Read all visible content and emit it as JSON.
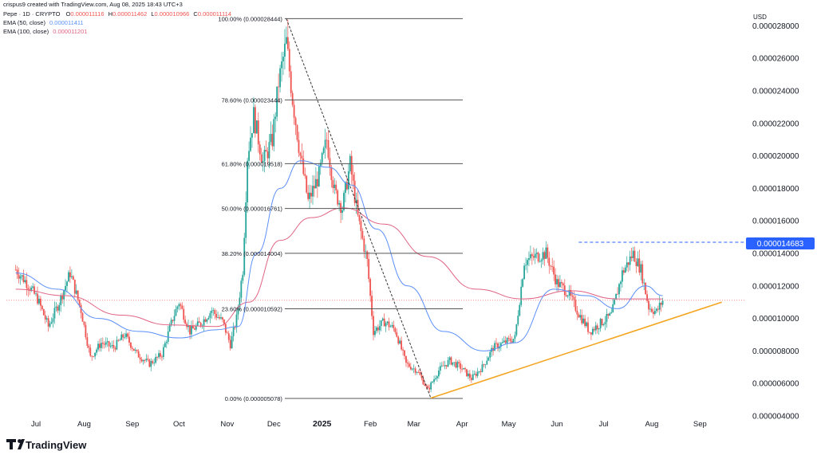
{
  "header": {
    "caption": "crispus9 created with TradingView.com, Aug 08, 2025 18:43 UTC+3",
    "symbol_line": "Pepe · 1D · CRYPTO",
    "ohlc": {
      "o_label": "O",
      "o_value": "0.000011116",
      "h_label": "H",
      "h_value": "0.000011462",
      "l_label": "L",
      "l_value": "0.000010966",
      "c_label": "C",
      "c_value": "0.000011114"
    },
    "ema50_label": "EMA (50, close)",
    "ema50_value": "0.000011411",
    "ema100_label": "EMA (100, close)",
    "ema100_value": "0.000011201"
  },
  "price_scale": {
    "currency": "USD",
    "highlight_label": "0.000014683"
  },
  "watermark": {
    "logo_text": "TradingView"
  },
  "colors": {
    "up": "#26a69a",
    "down": "#ef5350",
    "ema50": "#5b8ff9",
    "ema100": "#e06383",
    "trendline": "#f5a623",
    "fib": "#555555",
    "highlight": "#2962ff",
    "axis_text": "#131722"
  },
  "chart_data": {
    "type": "candlestick",
    "title": "Pepe · 1D · CRYPTO",
    "y_unit": "USD",
    "ylim": [
      3.9e-06,
      2.9e-05
    ],
    "y_ticks": [
      "0.000004000",
      "0.000006000",
      "0.000008000",
      "0.000010000",
      "0.000012000",
      "0.000014000",
      "0.000016000",
      "0.000018000",
      "0.000020000",
      "0.000022000",
      "0.000024000",
      "0.000026000",
      "0.000028000"
    ],
    "x_ticks": [
      "Jul",
      "Aug",
      "Sep",
      "Oct",
      "Nov",
      "Dec",
      "2025",
      "Feb",
      "Mar",
      "Apr",
      "May",
      "Jun",
      "Jul",
      "Aug",
      "Sep"
    ],
    "x_ticks_bold": [
      "2025"
    ],
    "grid": false,
    "close_path": [
      {
        "date": "2024-06-18",
        "close": 1.3e-05
      },
      {
        "date": "2024-06-25",
        "close": 1.22e-05
      },
      {
        "date": "2024-07-02",
        "close": 1.12e-05
      },
      {
        "date": "2024-07-09",
        "close": 9.5e-06
      },
      {
        "date": "2024-07-16",
        "close": 1.1e-05
      },
      {
        "date": "2024-07-23",
        "close": 1.28e-05
      },
      {
        "date": "2024-07-30",
        "close": 1.05e-05
      },
      {
        "date": "2024-08-05",
        "close": 7.6e-06
      },
      {
        "date": "2024-08-12",
        "close": 8.5e-06
      },
      {
        "date": "2024-08-20",
        "close": 8.2e-06
      },
      {
        "date": "2024-08-27",
        "close": 9e-06
      },
      {
        "date": "2024-09-04",
        "close": 7.8e-06
      },
      {
        "date": "2024-09-12",
        "close": 7.2e-06
      },
      {
        "date": "2024-09-20",
        "close": 7.8e-06
      },
      {
        "date": "2024-09-27",
        "close": 1e-05
      },
      {
        "date": "2024-10-01",
        "close": 1.1e-05
      },
      {
        "date": "2024-10-08",
        "close": 9.2e-06
      },
      {
        "date": "2024-10-15",
        "close": 9.7e-06
      },
      {
        "date": "2024-10-22",
        "close": 1.05e-05
      },
      {
        "date": "2024-10-29",
        "close": 9.8e-06
      },
      {
        "date": "2024-11-03",
        "close": 8.4e-06
      },
      {
        "date": "2024-11-07",
        "close": 1e-05
      },
      {
        "date": "2024-11-11",
        "close": 1.3e-05
      },
      {
        "date": "2024-11-14",
        "close": 2e-05
      },
      {
        "date": "2024-11-18",
        "close": 2.25e-05
      },
      {
        "date": "2024-11-24",
        "close": 1.96e-05
      },
      {
        "date": "2024-11-30",
        "close": 2.1e-05
      },
      {
        "date": "2024-12-04",
        "close": 2.45e-05
      },
      {
        "date": "2024-12-09",
        "close": 2.7e-05
      },
      {
        "date": "2024-12-13",
        "close": 2.35e-05
      },
      {
        "date": "2024-12-18",
        "close": 2e-05
      },
      {
        "date": "2024-12-23",
        "close": 1.72e-05
      },
      {
        "date": "2024-12-30",
        "close": 1.88e-05
      },
      {
        "date": "2025-01-04",
        "close": 2.1e-05
      },
      {
        "date": "2025-01-09",
        "close": 1.78e-05
      },
      {
        "date": "2025-01-14",
        "close": 1.68e-05
      },
      {
        "date": "2025-01-19",
        "close": 1.95e-05
      },
      {
        "date": "2025-01-24",
        "close": 1.62e-05
      },
      {
        "date": "2025-01-30",
        "close": 1.35e-05
      },
      {
        "date": "2025-02-03",
        "close": 9.2e-06
      },
      {
        "date": "2025-02-10",
        "close": 9.8e-06
      },
      {
        "date": "2025-02-17",
        "close": 9.3e-06
      },
      {
        "date": "2025-02-24",
        "close": 7.2e-06
      },
      {
        "date": "2025-03-03",
        "close": 6.8e-06
      },
      {
        "date": "2025-03-10",
        "close": 5.6e-06
      },
      {
        "date": "2025-03-17",
        "close": 6.8e-06
      },
      {
        "date": "2025-03-24",
        "close": 7.4e-06
      },
      {
        "date": "2025-03-31",
        "close": 7e-06
      },
      {
        "date": "2025-04-07",
        "close": 6.3e-06
      },
      {
        "date": "2025-04-14",
        "close": 7e-06
      },
      {
        "date": "2025-04-21",
        "close": 8.2e-06
      },
      {
        "date": "2025-04-28",
        "close": 8.5e-06
      },
      {
        "date": "2025-05-05",
        "close": 8.8e-06
      },
      {
        "date": "2025-05-11",
        "close": 1.35e-05
      },
      {
        "date": "2025-05-18",
        "close": 1.38e-05
      },
      {
        "date": "2025-05-25",
        "close": 1.4e-05
      },
      {
        "date": "2025-06-01",
        "close": 1.22e-05
      },
      {
        "date": "2025-06-08",
        "close": 1.16e-05
      },
      {
        "date": "2025-06-15",
        "close": 1.03e-05
      },
      {
        "date": "2025-06-22",
        "close": 9.2e-06
      },
      {
        "date": "2025-06-29",
        "close": 9.7e-06
      },
      {
        "date": "2025-07-06",
        "close": 1.02e-05
      },
      {
        "date": "2025-07-13",
        "close": 1.28e-05
      },
      {
        "date": "2025-07-20",
        "close": 1.4e-05
      },
      {
        "date": "2025-07-25",
        "close": 1.3e-05
      },
      {
        "date": "2025-07-30",
        "close": 1.07e-05
      },
      {
        "date": "2025-08-04",
        "close": 1.04e-05
      },
      {
        "date": "2025-08-08",
        "close": 1.11e-05
      }
    ],
    "ema50": [
      {
        "date": "2024-06-18",
        "value": 1.28e-05
      },
      {
        "date": "2024-07-15",
        "value": 1.18e-05
      },
      {
        "date": "2024-08-10",
        "value": 1e-05
      },
      {
        "date": "2024-09-05",
        "value": 9.2e-06
      },
      {
        "date": "2024-10-01",
        "value": 8.8e-06
      },
      {
        "date": "2024-10-25",
        "value": 9.3e-06
      },
      {
        "date": "2024-11-08",
        "value": 9.5e-06
      },
      {
        "date": "2024-11-20",
        "value": 1.4e-05
      },
      {
        "date": "2024-12-05",
        "value": 1.8e-05
      },
      {
        "date": "2024-12-18",
        "value": 1.97e-05
      },
      {
        "date": "2025-01-05",
        "value": 1.93e-05
      },
      {
        "date": "2025-01-20",
        "value": 1.82e-05
      },
      {
        "date": "2025-02-05",
        "value": 1.55e-05
      },
      {
        "date": "2025-02-25",
        "value": 1.2e-05
      },
      {
        "date": "2025-03-20",
        "value": 9.2e-06
      },
      {
        "date": "2025-04-15",
        "value": 8e-06
      },
      {
        "date": "2025-05-05",
        "value": 8.5e-06
      },
      {
        "date": "2025-05-30",
        "value": 1.18e-05
      },
      {
        "date": "2025-06-20",
        "value": 1.14e-05
      },
      {
        "date": "2025-07-10",
        "value": 1.06e-05
      },
      {
        "date": "2025-07-28",
        "value": 1.2e-05
      },
      {
        "date": "2025-08-08",
        "value": 1.14e-05
      }
    ],
    "ema100": [
      {
        "date": "2024-06-18",
        "value": 1.18e-05
      },
      {
        "date": "2024-07-20",
        "value": 1.14e-05
      },
      {
        "date": "2024-08-25",
        "value": 1.02e-05
      },
      {
        "date": "2024-09-25",
        "value": 9.6e-06
      },
      {
        "date": "2024-10-25",
        "value": 9.5e-06
      },
      {
        "date": "2024-11-15",
        "value": 1.1e-05
      },
      {
        "date": "2024-12-05",
        "value": 1.48e-05
      },
      {
        "date": "2024-12-25",
        "value": 1.62e-05
      },
      {
        "date": "2025-01-15",
        "value": 1.68e-05
      },
      {
        "date": "2025-02-10",
        "value": 1.58e-05
      },
      {
        "date": "2025-03-10",
        "value": 1.38e-05
      },
      {
        "date": "2025-04-10",
        "value": 1.18e-05
      },
      {
        "date": "2025-05-10",
        "value": 1.12e-05
      },
      {
        "date": "2025-06-10",
        "value": 1.17e-05
      },
      {
        "date": "2025-07-10",
        "value": 1.12e-05
      },
      {
        "date": "2025-08-08",
        "value": 1.12e-05
      }
    ],
    "fib_levels": [
      {
        "label": "100.00% (0.000028444)",
        "price": 2.8444e-05
      },
      {
        "label": "78.60% (0.000023444)",
        "price": 2.3444e-05
      },
      {
        "label": "61.80% (0.000019518)",
        "price": 1.9518e-05
      },
      {
        "label": "50.00% (0.000016761)",
        "price": 1.6761e-05
      },
      {
        "label": "38.20% (0.000014004)",
        "price": 1.4004e-05
      },
      {
        "label": "23.60% (0.000010592)",
        "price": 1.0592e-05
      },
      {
        "label": "0.00% (0.000005078)",
        "price": 5.078e-06
      }
    ],
    "fib_range": {
      "from_date": "2024-12-09",
      "to_date": "2025-03-10"
    },
    "diagonal_line": {
      "from": {
        "date": "2024-12-09",
        "price": 2.8444e-05
      },
      "to": {
        "date": "2025-03-12",
        "price": 5.078e-06
      }
    },
    "trendline": {
      "from": {
        "date": "2025-03-12",
        "price": 5.1e-06
      },
      "to": {
        "date": "2025-09-15",
        "price": 1.1e-05
      }
    },
    "resistance_level": {
      "price": 1.4683e-05,
      "from_date": "2025-06-15"
    },
    "current_price_line": 1.1114e-05
  }
}
